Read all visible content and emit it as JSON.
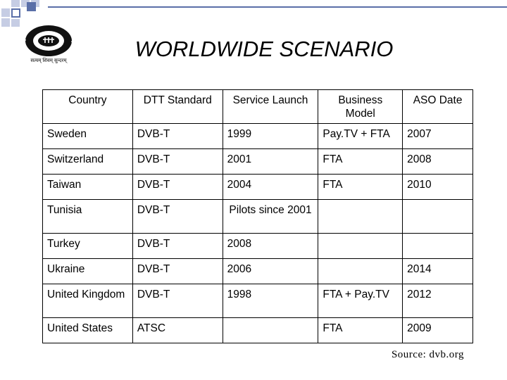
{
  "header": {
    "logo_caption": "सत्यम् शिवम् सुन्दरम्",
    "title": "WORLDWIDE SCENARIO"
  },
  "table": {
    "columns": [
      "Country",
      "DTT Standard",
      "Service Launch",
      "Business Model",
      "ASO Date"
    ],
    "rows": [
      [
        "Sweden",
        "DVB-T",
        "1999",
        "Pay.TV + FTA",
        "2007"
      ],
      [
        "Switzerland",
        "DVB-T",
        "2001",
        "FTA",
        "2008"
      ],
      [
        "Taiwan",
        "DVB-T",
        "2004",
        "FTA",
        "2010"
      ],
      [
        "Tunisia",
        "DVB-T",
        "Pilots since 2001",
        "",
        ""
      ],
      [
        "Turkey",
        "DVB-T",
        "2008",
        "",
        ""
      ],
      [
        "Ukraine",
        "DVB-T",
        "2006",
        "",
        "2014"
      ],
      [
        "United Kingdom",
        "DVB-T",
        "1998",
        "FTA + Pay.TV",
        "2012"
      ],
      [
        "United States",
        "ATSC",
        "",
        "FTA",
        "2009"
      ]
    ]
  },
  "footer": {
    "source": "Source: dvb.org"
  },
  "colors": {
    "corner_dark": "#5a6fa8",
    "corner_light": "#c6cde4",
    "logo": "#111111"
  }
}
